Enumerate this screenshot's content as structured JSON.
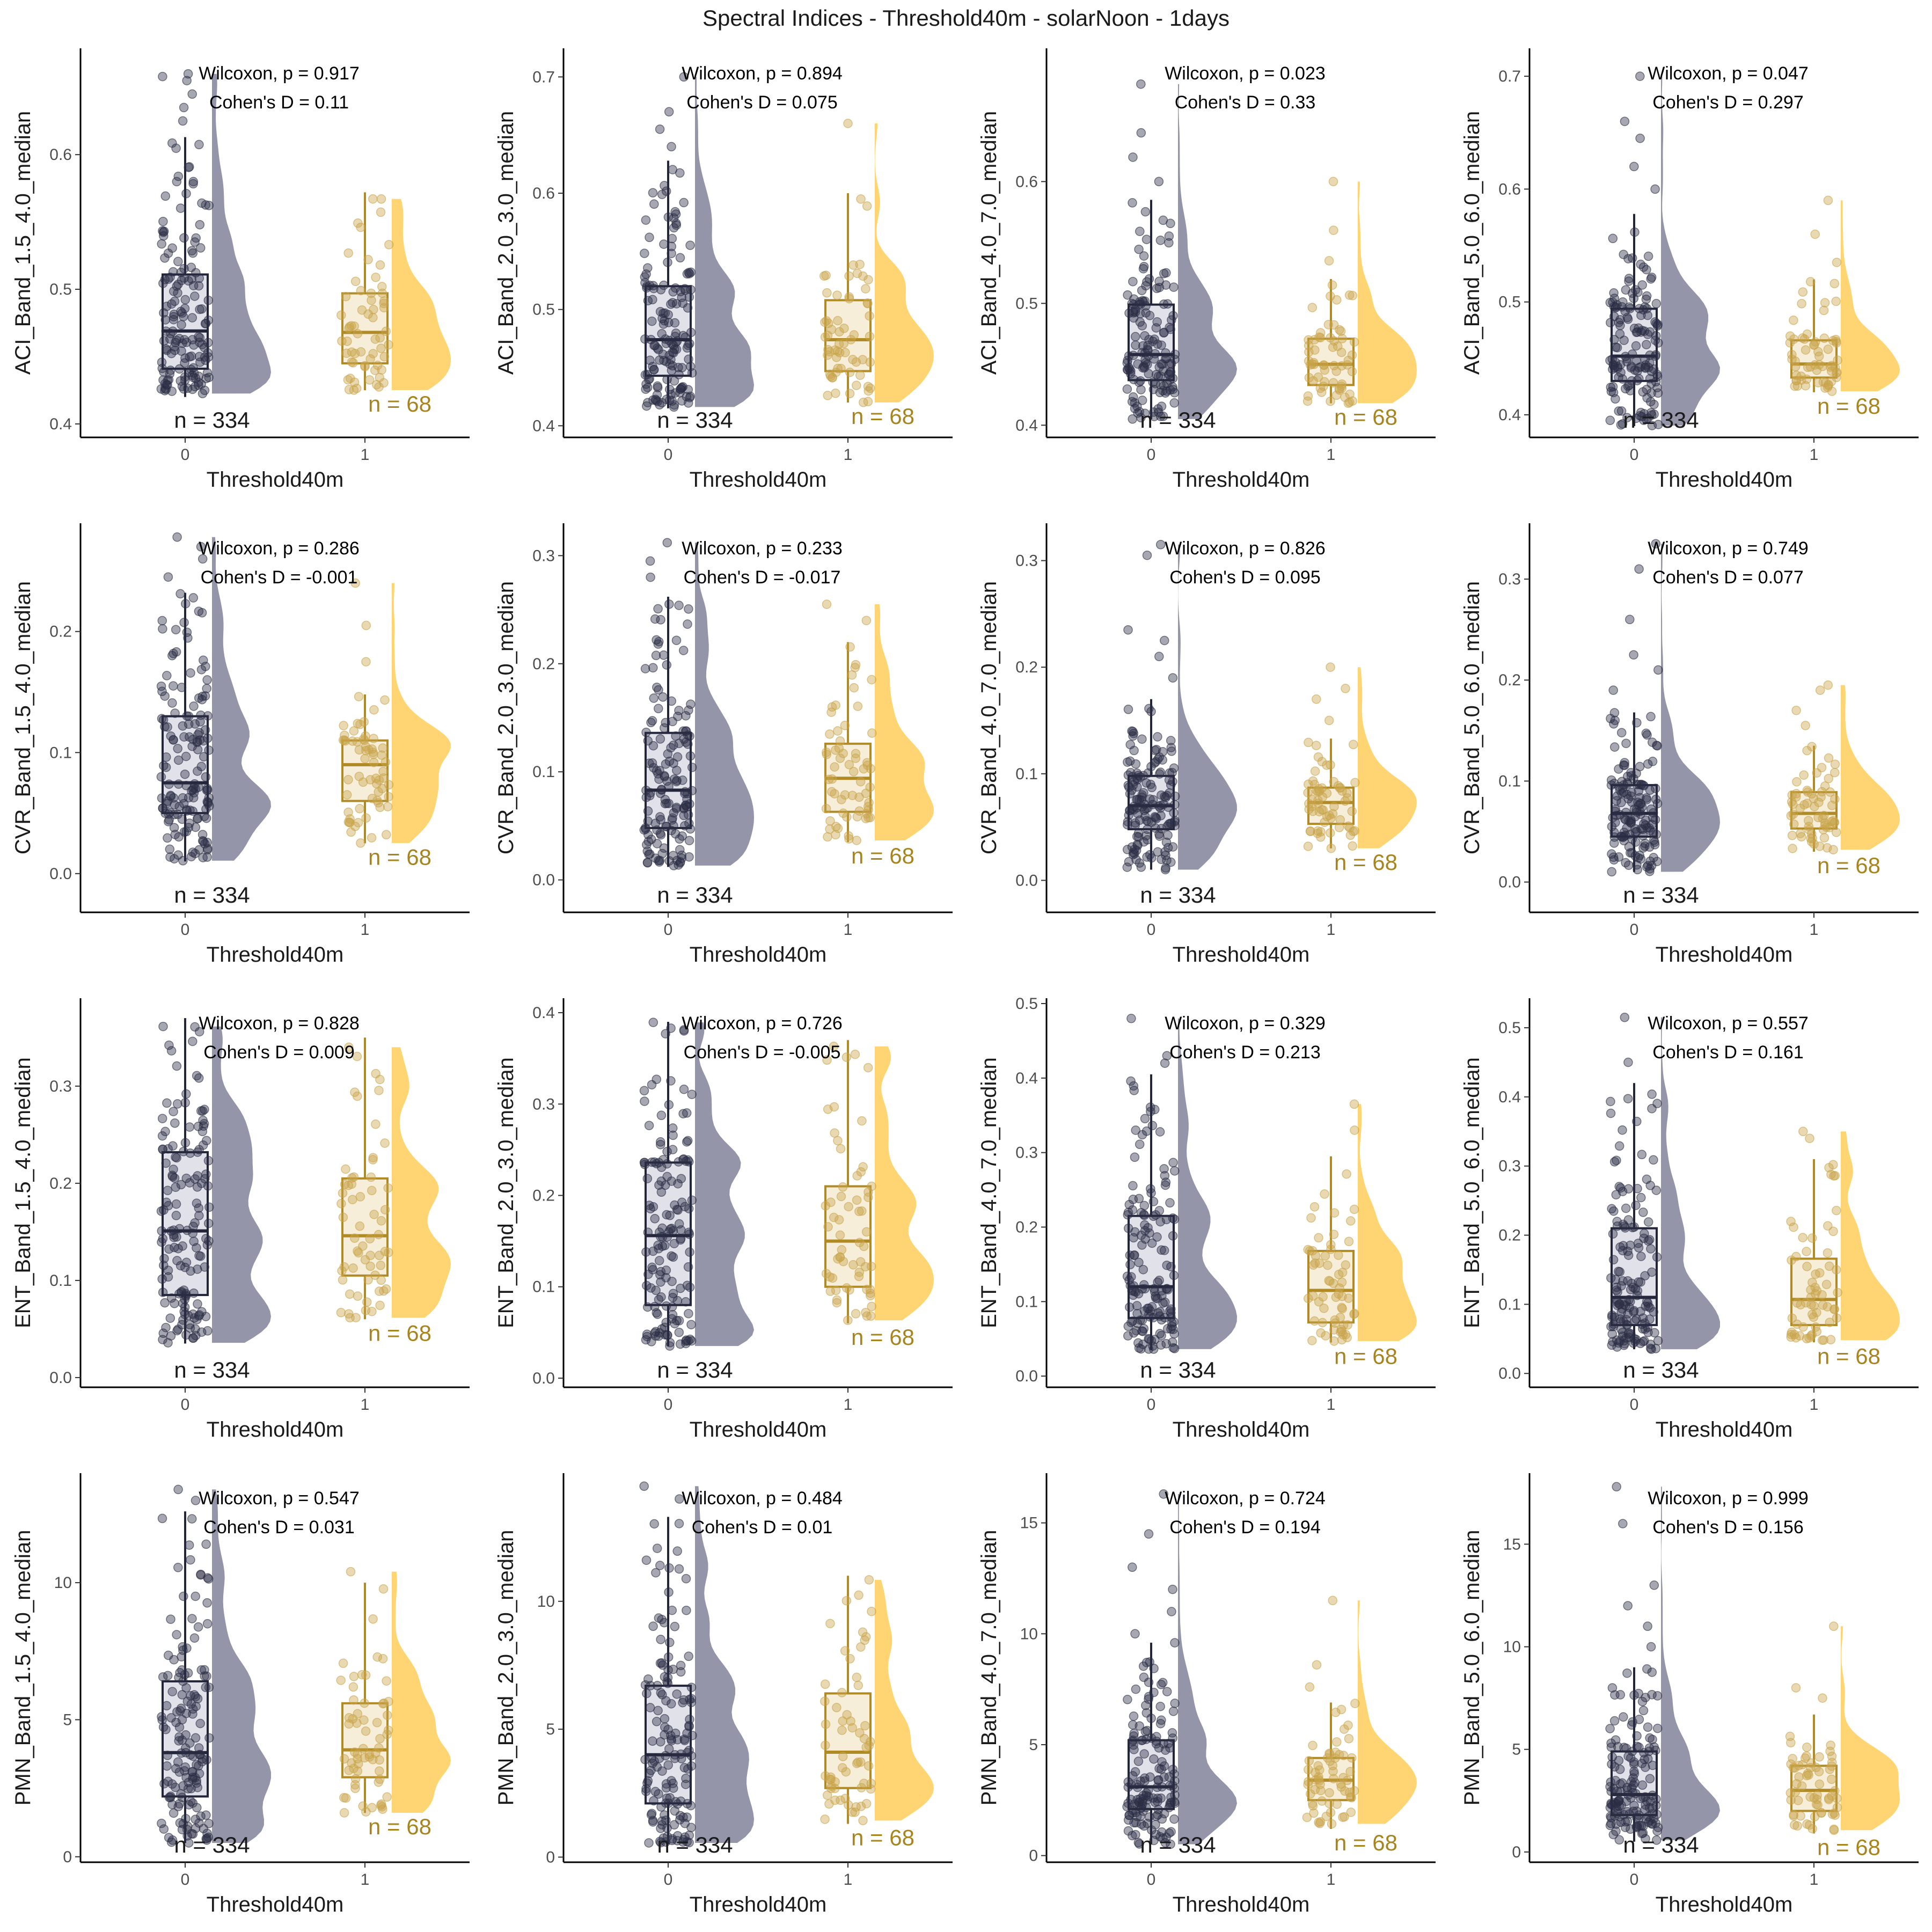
{
  "figure": {
    "title": "Spectral Indices - Threshold40m - solarNoon - 1days"
  },
  "colors": {
    "group0_point": "#2a2d44",
    "group0_box_fill": "#dcdce6",
    "group0_box_line": "#23263a",
    "group0_violin": "#8e8fa3",
    "group1_point": "#c9a44a",
    "group1_box_fill": "#f6ebd2",
    "group1_box_line": "#b08a25",
    "group1_violin": "#ffd36b",
    "n1_text": "#a8841f"
  },
  "chart_data": [
    {
      "type": "box",
      "ylabel": "ACI_Band_1.5_4.0_median",
      "xlabel": "Threshold40m",
      "categories": [
        "0",
        "1"
      ],
      "yticks": [
        "0.4",
        "0.5",
        "0.6"
      ],
      "ylim": [
        0.39,
        0.675
      ],
      "groups": [
        {
          "n": 334,
          "n_label": "n = 334",
          "min": 0.42,
          "q1": 0.441,
          "median": 0.469,
          "q3": 0.511,
          "max": 0.613,
          "outliers": [
            0.625,
            0.635,
            0.645,
            0.655,
            0.658,
            0.66
          ]
        },
        {
          "n": 68,
          "n_label": "n = 68",
          "min": 0.425,
          "q1": 0.445,
          "median": 0.468,
          "q3": 0.497,
          "max": 0.572,
          "outliers": []
        }
      ],
      "stats": {
        "wilcoxon": "Wilcoxon, p = 0.917",
        "cohen": "Cohen's D = 0.11"
      }
    },
    {
      "type": "box",
      "ylabel": "ACI_Band_2.0_3.0_median",
      "xlabel": "Threshold40m",
      "categories": [
        "0",
        "1"
      ],
      "yticks": [
        "0.4",
        "0.5",
        "0.6",
        "0.7"
      ],
      "ylim": [
        0.39,
        0.72
      ],
      "groups": [
        {
          "n": 334,
          "n_label": "n = 334",
          "min": 0.415,
          "q1": 0.443,
          "median": 0.474,
          "q3": 0.52,
          "max": 0.628,
          "outliers": [
            0.64,
            0.655,
            0.67,
            0.7
          ]
        },
        {
          "n": 68,
          "n_label": "n = 68",
          "min": 0.42,
          "q1": 0.447,
          "median": 0.474,
          "q3": 0.508,
          "max": 0.6,
          "outliers": [
            0.66
          ]
        }
      ],
      "stats": {
        "wilcoxon": "Wilcoxon, p = 0.894",
        "cohen": "Cohen's D = 0.075"
      }
    },
    {
      "type": "box",
      "ylabel": "ACI_Band_4.0_7.0_median",
      "xlabel": "Threshold40m",
      "categories": [
        "0",
        "1"
      ],
      "yticks": [
        "0.4",
        "0.5",
        "0.6"
      ],
      "ylim": [
        0.39,
        0.705
      ],
      "groups": [
        {
          "n": 334,
          "n_label": "n = 334",
          "min": 0.405,
          "q1": 0.437,
          "median": 0.458,
          "q3": 0.499,
          "max": 0.585,
          "outliers": [
            0.6,
            0.62,
            0.64,
            0.68
          ]
        },
        {
          "n": 68,
          "n_label": "n = 68",
          "min": 0.418,
          "q1": 0.433,
          "median": 0.45,
          "q3": 0.471,
          "max": 0.52,
          "outliers": [
            0.535,
            0.56,
            0.6
          ]
        }
      ],
      "stats": {
        "wilcoxon": "Wilcoxon, p = 0.023",
        "cohen": "Cohen's D = 0.33"
      }
    },
    {
      "type": "box",
      "ylabel": "ACI_Band_5.0_6.0_median",
      "xlabel": "Threshold40m",
      "categories": [
        "0",
        "1"
      ],
      "yticks": [
        "0.4",
        "0.5",
        "0.6",
        "0.7"
      ],
      "ylim": [
        0.38,
        0.72
      ],
      "groups": [
        {
          "n": 334,
          "n_label": "n = 334",
          "min": 0.39,
          "q1": 0.43,
          "median": 0.452,
          "q3": 0.494,
          "max": 0.578,
          "outliers": [
            0.6,
            0.62,
            0.645,
            0.66,
            0.7
          ]
        },
        {
          "n": 68,
          "n_label": "n = 68",
          "min": 0.42,
          "q1": 0.433,
          "median": 0.445,
          "q3": 0.466,
          "max": 0.52,
          "outliers": [
            0.535,
            0.56,
            0.59
          ]
        }
      ],
      "stats": {
        "wilcoxon": "Wilcoxon, p = 0.047",
        "cohen": "Cohen's D = 0.297"
      }
    },
    {
      "type": "box",
      "ylabel": "CVR_Band_1.5_4.0_median",
      "xlabel": "Threshold40m",
      "categories": [
        "0",
        "1"
      ],
      "yticks": [
        "0.0",
        "0.1",
        "0.2"
      ],
      "ylim": [
        -0.032,
        0.285
      ],
      "groups": [
        {
          "n": 334,
          "n_label": "n = 334",
          "min": 0.01,
          "q1": 0.05,
          "median": 0.075,
          "q3": 0.13,
          "max": 0.232,
          "outliers": [
            0.245,
            0.26,
            0.27,
            0.278
          ]
        },
        {
          "n": 68,
          "n_label": "n = 68",
          "min": 0.025,
          "q1": 0.06,
          "median": 0.09,
          "q3": 0.11,
          "max": 0.148,
          "outliers": [
            0.175,
            0.205,
            0.24
          ]
        }
      ],
      "stats": {
        "wilcoxon": "Wilcoxon, p = 0.286",
        "cohen": "Cohen's D = -0.001"
      }
    },
    {
      "type": "box",
      "ylabel": "CVR_Band_2.0_3.0_median",
      "xlabel": "Threshold40m",
      "categories": [
        "0",
        "1"
      ],
      "yticks": [
        "0.0",
        "0.1",
        "0.2",
        "0.3"
      ],
      "ylim": [
        -0.03,
        0.325
      ],
      "groups": [
        {
          "n": 334,
          "n_label": "n = 334",
          "min": 0.012,
          "q1": 0.048,
          "median": 0.083,
          "q3": 0.136,
          "max": 0.262,
          "outliers": [
            0.28,
            0.295,
            0.312
          ]
        },
        {
          "n": 68,
          "n_label": "n = 68",
          "min": 0.035,
          "q1": 0.063,
          "median": 0.094,
          "q3": 0.126,
          "max": 0.22,
          "outliers": [
            0.24,
            0.255
          ]
        }
      ],
      "stats": {
        "wilcoxon": "Wilcoxon, p = 0.233",
        "cohen": "Cohen's D = -0.017"
      }
    },
    {
      "type": "box",
      "ylabel": "CVR_Band_4.0_7.0_median",
      "xlabel": "Threshold40m",
      "categories": [
        "0",
        "1"
      ],
      "yticks": [
        "0.0",
        "0.1",
        "0.2",
        "0.3"
      ],
      "ylim": [
        -0.03,
        0.33
      ],
      "groups": [
        {
          "n": 334,
          "n_label": "n = 334",
          "min": 0.01,
          "q1": 0.048,
          "median": 0.07,
          "q3": 0.098,
          "max": 0.17,
          "outliers": [
            0.19,
            0.21,
            0.225,
            0.235,
            0.305,
            0.315
          ]
        },
        {
          "n": 68,
          "n_label": "n = 68",
          "min": 0.03,
          "q1": 0.053,
          "median": 0.073,
          "q3": 0.087,
          "max": 0.133,
          "outliers": [
            0.15,
            0.17,
            0.18,
            0.2
          ]
        }
      ],
      "stats": {
        "wilcoxon": "Wilcoxon, p = 0.826",
        "cohen": "Cohen's D = 0.095"
      }
    },
    {
      "type": "box",
      "ylabel": "CVR_Band_5.0_6.0_median",
      "xlabel": "Threshold40m",
      "categories": [
        "0",
        "1"
      ],
      "yticks": [
        "0.0",
        "0.1",
        "0.2",
        "0.3"
      ],
      "ylim": [
        -0.03,
        0.35
      ],
      "groups": [
        {
          "n": 334,
          "n_label": "n = 334",
          "min": 0.01,
          "q1": 0.045,
          "median": 0.068,
          "q3": 0.096,
          "max": 0.168,
          "outliers": [
            0.19,
            0.21,
            0.225,
            0.26,
            0.31,
            0.335
          ]
        },
        {
          "n": 68,
          "n_label": "n = 68",
          "min": 0.03,
          "q1": 0.053,
          "median": 0.068,
          "q3": 0.089,
          "max": 0.135,
          "outliers": [
            0.155,
            0.17,
            0.19,
            0.195
          ]
        }
      ],
      "stats": {
        "wilcoxon": "Wilcoxon, p = 0.749",
        "cohen": "Cohen's D = 0.077"
      }
    },
    {
      "type": "box",
      "ylabel": "ENT_Band_1.5_4.0_median",
      "xlabel": "Threshold40m",
      "categories": [
        "0",
        "1"
      ],
      "yticks": [
        "0.0",
        "0.1",
        "0.2",
        "0.3"
      ],
      "ylim": [
        -0.01,
        0.385
      ],
      "groups": [
        {
          "n": 334,
          "n_label": "n = 334",
          "min": 0.035,
          "q1": 0.085,
          "median": 0.151,
          "q3": 0.232,
          "max": 0.37,
          "outliers": []
        },
        {
          "n": 68,
          "n_label": "n = 68",
          "min": 0.06,
          "q1": 0.105,
          "median": 0.146,
          "q3": 0.205,
          "max": 0.35,
          "outliers": []
        }
      ],
      "stats": {
        "wilcoxon": "Wilcoxon, p = 0.828",
        "cohen": "Cohen's D = 0.009"
      }
    },
    {
      "type": "box",
      "ylabel": "ENT_Band_2.0_3.0_median",
      "xlabel": "Threshold40m",
      "categories": [
        "0",
        "1"
      ],
      "yticks": [
        "0.0",
        "0.1",
        "0.2",
        "0.3",
        "0.4"
      ],
      "ylim": [
        -0.01,
        0.41
      ],
      "groups": [
        {
          "n": 334,
          "n_label": "n = 334",
          "min": 0.035,
          "q1": 0.08,
          "median": 0.156,
          "q3": 0.236,
          "max": 0.39,
          "outliers": []
        },
        {
          "n": 68,
          "n_label": "n = 68",
          "min": 0.06,
          "q1": 0.1,
          "median": 0.15,
          "q3": 0.21,
          "max": 0.37,
          "outliers": []
        }
      ],
      "stats": {
        "wilcoxon": "Wilcoxon, p = 0.726",
        "cohen": "Cohen's D = -0.005"
      }
    },
    {
      "type": "box",
      "ylabel": "ENT_Band_4.0_7.0_median",
      "xlabel": "Threshold40m",
      "categories": [
        "0",
        "1"
      ],
      "yticks": [
        "0.0",
        "0.1",
        "0.2",
        "0.3",
        "0.4",
        "0.5"
      ],
      "ylim": [
        -0.015,
        0.5
      ],
      "groups": [
        {
          "n": 334,
          "n_label": "n = 334",
          "min": 0.035,
          "q1": 0.078,
          "median": 0.12,
          "q3": 0.215,
          "max": 0.405,
          "outliers": [
            0.42,
            0.43,
            0.48
          ]
        },
        {
          "n": 68,
          "n_label": "n = 68",
          "min": 0.045,
          "q1": 0.072,
          "median": 0.115,
          "q3": 0.168,
          "max": 0.295,
          "outliers": [
            0.33,
            0.365
          ]
        }
      ],
      "stats": {
        "wilcoxon": "Wilcoxon, p = 0.329",
        "cohen": "Cohen's D = 0.213"
      }
    },
    {
      "type": "box",
      "ylabel": "ENT_Band_5.0_6.0_median",
      "xlabel": "Threshold40m",
      "categories": [
        "0",
        "1"
      ],
      "yticks": [
        "0.0",
        "0.1",
        "0.2",
        "0.3",
        "0.4",
        "0.5"
      ],
      "ylim": [
        -0.02,
        0.535
      ],
      "groups": [
        {
          "n": 334,
          "n_label": "n = 334",
          "min": 0.035,
          "q1": 0.07,
          "median": 0.11,
          "q3": 0.21,
          "max": 0.42,
          "outliers": [
            0.45,
            0.515
          ]
        },
        {
          "n": 68,
          "n_label": "n = 68",
          "min": 0.045,
          "q1": 0.07,
          "median": 0.107,
          "q3": 0.166,
          "max": 0.31,
          "outliers": [
            0.34,
            0.35
          ]
        }
      ],
      "stats": {
        "wilcoxon": "Wilcoxon, p = 0.557",
        "cohen": "Cohen's D = 0.161"
      }
    },
    {
      "type": "box",
      "ylabel": "PMN_Band_1.5_4.0_median",
      "xlabel": "Threshold40m",
      "categories": [
        "0",
        "1"
      ],
      "yticks": [
        "0",
        "5",
        "10"
      ],
      "ylim": [
        -0.2,
        13.8
      ],
      "groups": [
        {
          "n": 334,
          "n_label": "n = 334",
          "min": 0.5,
          "q1": 2.2,
          "median": 3.8,
          "q3": 6.4,
          "max": 12.6,
          "outliers": [
            13.0,
            13.4
          ]
        },
        {
          "n": 68,
          "n_label": "n = 68",
          "min": 1.6,
          "q1": 2.9,
          "median": 3.9,
          "q3": 5.6,
          "max": 10.0,
          "outliers": [
            10.4
          ]
        }
      ],
      "stats": {
        "wilcoxon": "Wilcoxon, p = 0.547",
        "cohen": "Cohen's D = 0.031"
      }
    },
    {
      "type": "box",
      "ylabel": "PMN_Band_2.0_3.0_median",
      "xlabel": "Threshold40m",
      "categories": [
        "0",
        "1"
      ],
      "yticks": [
        "0",
        "5",
        "10"
      ],
      "ylim": [
        -0.2,
        14.8
      ],
      "groups": [
        {
          "n": 334,
          "n_label": "n = 334",
          "min": 0.5,
          "q1": 2.1,
          "median": 4.0,
          "q3": 6.7,
          "max": 13.3,
          "outliers": [
            14.0,
            14.5
          ]
        },
        {
          "n": 68,
          "n_label": "n = 68",
          "min": 1.3,
          "q1": 2.7,
          "median": 4.1,
          "q3": 6.4,
          "max": 11.0,
          "outliers": []
        }
      ],
      "stats": {
        "wilcoxon": "Wilcoxon, p = 0.484",
        "cohen": "Cohen's D = 0.01"
      }
    },
    {
      "type": "box",
      "ylabel": "PMN_Band_4.0_7.0_median",
      "xlabel": "Threshold40m",
      "categories": [
        "0",
        "1"
      ],
      "yticks": [
        "0",
        "5",
        "10",
        "15"
      ],
      "ylim": [
        -0.3,
        17.0
      ],
      "groups": [
        {
          "n": 334,
          "n_label": "n = 334",
          "min": 0.5,
          "q1": 2.1,
          "median": 3.1,
          "q3": 5.2,
          "max": 9.6,
          "outliers": [
            10.0,
            11.0,
            12.0,
            13.0,
            14.5,
            16.3
          ]
        },
        {
          "n": 68,
          "n_label": "n = 68",
          "min": 1.2,
          "q1": 2.5,
          "median": 3.4,
          "q3": 4.4,
          "max": 6.9,
          "outliers": [
            7.6,
            8.6,
            11.5
          ]
        }
      ],
      "stats": {
        "wilcoxon": "Wilcoxon, p = 0.724",
        "cohen": "Cohen's D = 0.194"
      }
    },
    {
      "type": "box",
      "ylabel": "PMN_Band_5.0_6.0_median",
      "xlabel": "Threshold40m",
      "categories": [
        "0",
        "1"
      ],
      "yticks": [
        "0",
        "5",
        "10",
        "15"
      ],
      "ylim": [
        -0.5,
        18.2
      ],
      "groups": [
        {
          "n": 334,
          "n_label": "n = 334",
          "min": 0.5,
          "q1": 1.8,
          "median": 2.8,
          "q3": 4.9,
          "max": 9.0,
          "outliers": [
            10.0,
            11.0,
            12.0,
            13.0,
            16.0,
            17.8
          ]
        },
        {
          "n": 68,
          "n_label": "n = 68",
          "min": 0.9,
          "q1": 2.0,
          "median": 3.0,
          "q3": 4.2,
          "max": 6.7,
          "outliers": [
            7.5,
            8.0,
            11.0
          ]
        }
      ],
      "stats": {
        "wilcoxon": "Wilcoxon, p = 0.999",
        "cohen": "Cohen's D = 0.156"
      }
    }
  ]
}
